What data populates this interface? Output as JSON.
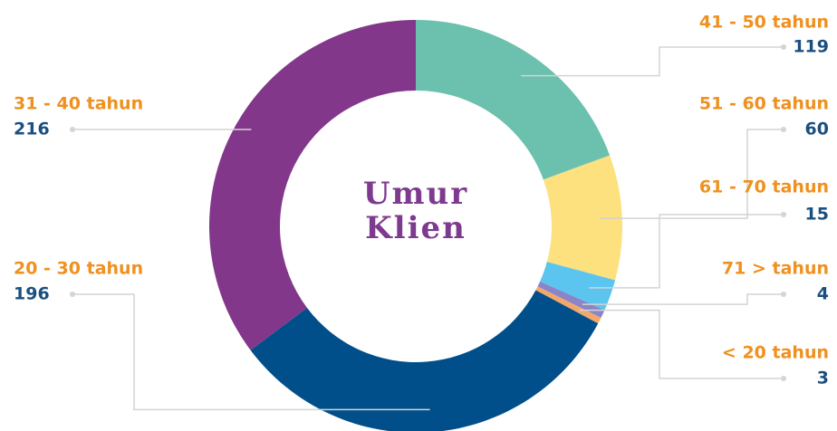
{
  "chart_data": {
    "type": "donut",
    "title": "Umur Klien",
    "categories": [
      "41 - 50 tahun",
      "51 - 60 tahun",
      "61 - 70 tahun",
      "71 > tahun",
      "< 20 tahun",
      "20 - 30 tahun",
      "31 - 40 tahun"
    ],
    "values": [
      119,
      60,
      15,
      4,
      3,
      196,
      216
    ],
    "colors": [
      "#6cc1ae",
      "#fce17e",
      "#5bc5ef",
      "#8a84c8",
      "#f3a86b",
      "#004f8b",
      "#82378b"
    ]
  }
}
